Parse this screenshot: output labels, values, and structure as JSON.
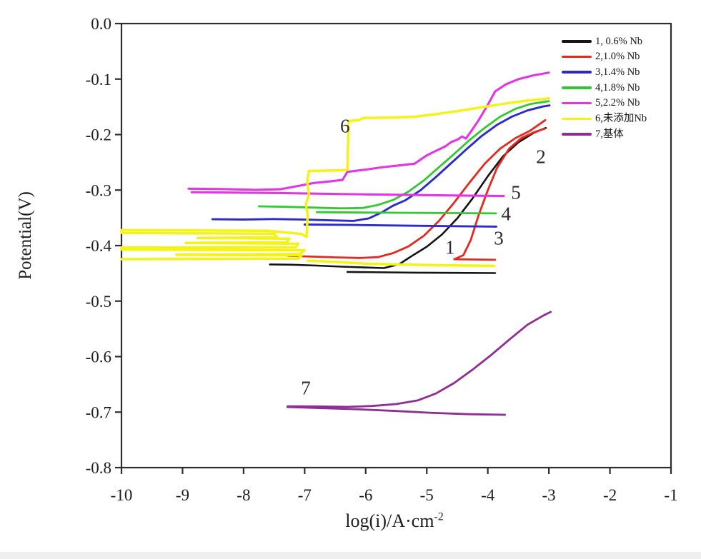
{
  "figure": {
    "background": "#ffffff",
    "axis_color": "#2e2e2e",
    "tick_label_color": "#1d1d1d"
  },
  "axes": {
    "x": {
      "title_prefix": "log(i)/A·cm",
      "title_sup": "-2",
      "ticks": [
        -10,
        -9,
        -8,
        -7,
        -6,
        -5,
        -4,
        -3,
        -2,
        -1
      ],
      "tick_labels": [
        "-10",
        "-9",
        "-8",
        "-7",
        "-6",
        "-5",
        "-4",
        "-3",
        "-2",
        "-1"
      ]
    },
    "y": {
      "title": "Potential(V)",
      "ticks": [
        0,
        -0.1,
        -0.2,
        -0.3,
        -0.4,
        -0.5,
        -0.6,
        -0.7,
        -0.8
      ],
      "tick_labels": [
        "0.0",
        "-0.1",
        "-0.2",
        "-0.3",
        "-0.4",
        "-0.5",
        "-0.6",
        "-0.7",
        "-0.8"
      ]
    }
  },
  "legend": {
    "items": [
      {
        "label": "1, 0.6% Nb",
        "color": "#141414"
      },
      {
        "label": "2,1.0% Nb",
        "color": "#e6281e"
      },
      {
        "label": "3,1.4% Nb",
        "color": "#2b2bcb"
      },
      {
        "label": "4,1.8% Nb",
        "color": "#2fca2f"
      },
      {
        "label": "5,2.2% Nb",
        "color": "#e335e3"
      },
      {
        "label": "6,未添加Nb",
        "color": "#f4f414"
      },
      {
        "label": "7,基体",
        "color": "#8e2d93"
      }
    ]
  },
  "curve_labels": [
    {
      "text": "1",
      "x": -4.62,
      "v": -0.404
    },
    {
      "text": "2",
      "x": -3.13,
      "v": -0.2405
    },
    {
      "text": "3",
      "x": -3.82,
      "v": -0.387
    },
    {
      "text": "4",
      "x": -3.7,
      "v": -0.344
    },
    {
      "text": "5",
      "x": -3.54,
      "v": -0.305
    },
    {
      "text": "6",
      "x": -6.34,
      "v": -0.185
    },
    {
      "text": "7",
      "x": -6.98,
      "v": -0.657
    }
  ],
  "chart_data": {
    "type": "line",
    "title": "",
    "xlabel": "log(i)/A·cm⁻²",
    "ylabel": "Potential(V)",
    "xlim": [
      -10,
      -1
    ],
    "ylim": [
      -0.8,
      0.0
    ],
    "grid": false,
    "legend_position": "upper right",
    "series": [
      {
        "name": "1, 0.6% Nb",
        "color": "#141414",
        "width": 2.6,
        "branches": [
          [
            [
              -7.57,
              -0.434
            ],
            [
              -7.2,
              -0.4345
            ],
            [
              -6.8,
              -0.436
            ],
            [
              -6.4,
              -0.438
            ],
            [
              -6.0,
              -0.4395
            ],
            [
              -5.7,
              -0.4405
            ],
            [
              -5.45,
              -0.4335
            ],
            [
              -5.25,
              -0.419
            ],
            [
              -5.0,
              -0.402
            ],
            [
              -4.75,
              -0.38
            ],
            [
              -4.5,
              -0.351
            ],
            [
              -4.25,
              -0.315
            ],
            [
              -4.0,
              -0.275
            ],
            [
              -3.75,
              -0.239
            ],
            [
              -3.5,
              -0.214
            ],
            [
              -3.25,
              -0.197
            ],
            [
              -3.05,
              -0.188
            ]
          ],
          [
            [
              -6.3,
              -0.4475
            ],
            [
              -5.2,
              -0.4487
            ],
            [
              -3.88,
              -0.4495
            ]
          ]
        ]
      },
      {
        "name": "2,1.0% Nb",
        "color": "#e6281e",
        "width": 2.8,
        "branches": [
          [
            [
              -7.27,
              -0.4185
            ],
            [
              -6.9,
              -0.4198
            ],
            [
              -6.5,
              -0.4212
            ],
            [
              -6.1,
              -0.4222
            ],
            [
              -5.8,
              -0.4208
            ],
            [
              -5.55,
              -0.4135
            ],
            [
              -5.3,
              -0.4015
            ],
            [
              -5.05,
              -0.3825
            ],
            [
              -4.8,
              -0.3555
            ],
            [
              -4.55,
              -0.3225
            ],
            [
              -4.3,
              -0.2865
            ],
            [
              -4.05,
              -0.2525
            ],
            [
              -3.8,
              -0.2255
            ],
            [
              -3.55,
              -0.2065
            ],
            [
              -3.3,
              -0.1925
            ],
            [
              -3.06,
              -0.174
            ]
          ],
          [
            [
              -3.07,
              -0.1895
            ],
            [
              -3.25,
              -0.1962
            ],
            [
              -3.45,
              -0.2062
            ],
            [
              -3.65,
              -0.2252
            ],
            [
              -3.85,
              -0.2602
            ],
            [
              -4.0,
              -0.3002
            ],
            [
              -4.15,
              -0.3452
            ],
            [
              -4.28,
              -0.3902
            ],
            [
              -4.4,
              -0.4172
            ],
            [
              -4.55,
              -0.4246
            ],
            [
              -3.88,
              -0.4256
            ]
          ]
        ]
      },
      {
        "name": "3,1.4% Nb",
        "color": "#2b2bcb",
        "width": 2.9,
        "branches": [
          [
            [
              -8.51,
              -0.3525
            ],
            [
              -8.0,
              -0.353
            ],
            [
              -7.5,
              -0.3522
            ],
            [
              -7.0,
              -0.3532
            ],
            [
              -6.6,
              -0.3545
            ],
            [
              -6.2,
              -0.3555
            ],
            [
              -5.95,
              -0.351
            ],
            [
              -5.75,
              -0.341
            ],
            [
              -5.55,
              -0.328
            ],
            [
              -5.35,
              -0.3185
            ],
            [
              -5.1,
              -0.3
            ],
            [
              -4.85,
              -0.2765
            ],
            [
              -4.6,
              -0.2515
            ],
            [
              -4.35,
              -0.2265
            ],
            [
              -4.1,
              -0.2025
            ],
            [
              -3.85,
              -0.1825
            ],
            [
              -3.6,
              -0.1675
            ],
            [
              -3.35,
              -0.1565
            ],
            [
              -3.1,
              -0.1495
            ],
            [
              -2.99,
              -0.1475
            ]
          ],
          [
            [
              -7.0,
              -0.362
            ],
            [
              -6.2,
              -0.3628
            ],
            [
              -5.2,
              -0.3642
            ],
            [
              -3.86,
              -0.3658
            ]
          ]
        ]
      },
      {
        "name": "4,1.8% Nb",
        "color": "#2fca2f",
        "width": 2.8,
        "branches": [
          [
            [
              -7.75,
              -0.3292
            ],
            [
              -7.3,
              -0.3302
            ],
            [
              -6.9,
              -0.3315
            ],
            [
              -6.4,
              -0.3328
            ],
            [
              -6.05,
              -0.3322
            ],
            [
              -5.8,
              -0.3268
            ],
            [
              -5.55,
              -0.3178
            ],
            [
              -5.3,
              -0.3028
            ],
            [
              -5.05,
              -0.2828
            ],
            [
              -4.8,
              -0.2588
            ],
            [
              -4.55,
              -0.2348
            ],
            [
              -4.3,
              -0.2098
            ],
            [
              -4.05,
              -0.1878
            ],
            [
              -3.8,
              -0.1678
            ],
            [
              -3.55,
              -0.1538
            ],
            [
              -3.3,
              -0.1448
            ],
            [
              -3.0,
              -0.1398
            ]
          ],
          [
            [
              -6.8,
              -0.3398
            ],
            [
              -5.5,
              -0.3408
            ],
            [
              -3.87,
              -0.342
            ]
          ]
        ]
      },
      {
        "name": "5,2.2% Nb",
        "color": "#e335e3",
        "width": 3.1,
        "branches": [
          [
            [
              -8.9,
              -0.2975
            ],
            [
              -8.3,
              -0.2982
            ],
            [
              -7.8,
              -0.2995
            ],
            [
              -7.4,
              -0.2985
            ],
            [
              -7.1,
              -0.2925
            ],
            [
              -6.85,
              -0.2872
            ],
            [
              -6.6,
              -0.2845
            ],
            [
              -6.38,
              -0.2818
            ],
            [
              -6.3,
              -0.2672
            ],
            [
              -6.0,
              -0.2632
            ],
            [
              -5.75,
              -0.2592
            ],
            [
              -5.45,
              -0.2555
            ],
            [
              -5.2,
              -0.2525
            ],
            [
              -5.0,
              -0.2375
            ],
            [
              -4.85,
              -0.2295
            ],
            [
              -4.7,
              -0.2215
            ],
            [
              -4.6,
              -0.2135
            ],
            [
              -4.5,
              -0.2092
            ],
            [
              -4.42,
              -0.2035
            ],
            [
              -4.36,
              -0.2072
            ],
            [
              -4.28,
              -0.1952
            ],
            [
              -4.15,
              -0.1742
            ],
            [
              -4.0,
              -0.1462
            ],
            [
              -3.88,
              -0.1222
            ],
            [
              -3.7,
              -0.1092
            ],
            [
              -3.5,
              -0.1002
            ],
            [
              -3.25,
              -0.0932
            ],
            [
              -3.0,
              -0.0885
            ]
          ],
          [
            [
              -8.85,
              -0.3038
            ],
            [
              -7.5,
              -0.3052
            ],
            [
              -6.0,
              -0.3078
            ],
            [
              -4.8,
              -0.3095
            ],
            [
              -3.74,
              -0.3108
            ]
          ]
        ]
      },
      {
        "name": "6,未添加Nb",
        "color": "#f4f414",
        "width": 3.5,
        "branches": [
          [
            [
              -10,
              -0.4245
            ],
            [
              -7.1,
              -0.4235
            ],
            [
              -7.05,
              -0.4175
            ],
            [
              -9.1,
              -0.4165
            ],
            [
              -7.08,
              -0.4152
            ],
            [
              -7.0,
              -0.4085
            ],
            [
              -10,
              -0.4072
            ],
            [
              -10,
              -0.4035
            ],
            [
              -7.15,
              -0.4032
            ],
            [
              -7.1,
              -0.3965
            ],
            [
              -8.95,
              -0.3952
            ],
            [
              -7.3,
              -0.3942
            ],
            [
              -7.25,
              -0.3875
            ],
            [
              -8.75,
              -0.3862
            ],
            [
              -7.45,
              -0.3852
            ],
            [
              -7.5,
              -0.3785
            ],
            [
              -10,
              -0.3772
            ],
            [
              -10,
              -0.3722
            ],
            [
              -7.6,
              -0.3732
            ],
            [
              -7.05,
              -0.3792
            ],
            [
              -6.97,
              -0.3845
            ],
            [
              -6.95,
              -0.345
            ],
            [
              -6.98,
              -0.325
            ],
            [
              -6.93,
              -0.308
            ],
            [
              -6.96,
              -0.285
            ],
            [
              -6.93,
              -0.2655
            ],
            [
              -6.4,
              -0.2645
            ],
            [
              -6.3,
              -0.2635
            ],
            [
              -6.28,
              -0.1755
            ],
            [
              -6.1,
              -0.1738
            ],
            [
              -6.05,
              -0.1702
            ],
            [
              -5.6,
              -0.1695
            ],
            [
              -5.2,
              -0.168
            ],
            [
              -4.9,
              -0.1638
            ],
            [
              -4.5,
              -0.1578
            ],
            [
              -4.1,
              -0.1508
            ],
            [
              -3.7,
              -0.1438
            ],
            [
              -3.35,
              -0.1388
            ],
            [
              -3.0,
              -0.1348
            ]
          ],
          [
            [
              -6.95,
              -0.427
            ],
            [
              -6.5,
              -0.4295
            ],
            [
              -6.0,
              -0.4325
            ],
            [
              -5.5,
              -0.434
            ],
            [
              -4.7,
              -0.4355
            ],
            [
              -3.9,
              -0.4365
            ]
          ]
        ]
      },
      {
        "name": "7,基体",
        "color": "#8e2d93",
        "width": 2.8,
        "branches": [
          [
            [
              -7.28,
              -0.6895
            ],
            [
              -6.8,
              -0.6898
            ],
            [
              -6.3,
              -0.6905
            ],
            [
              -5.9,
              -0.689
            ],
            [
              -5.5,
              -0.6855
            ],
            [
              -5.15,
              -0.679
            ],
            [
              -4.85,
              -0.6665
            ],
            [
              -4.55,
              -0.6475
            ],
            [
              -4.25,
              -0.6235
            ],
            [
              -3.95,
              -0.5975
            ],
            [
              -3.65,
              -0.5695
            ],
            [
              -3.35,
              -0.5425
            ],
            [
              -3.1,
              -0.5265
            ],
            [
              -2.97,
              -0.5195
            ]
          ],
          [
            [
              -7.28,
              -0.6908
            ],
            [
              -6.7,
              -0.6928
            ],
            [
              -6.1,
              -0.695
            ],
            [
              -5.5,
              -0.698
            ],
            [
              -4.9,
              -0.7015
            ],
            [
              -4.3,
              -0.7038
            ],
            [
              -3.72,
              -0.7048
            ]
          ]
        ]
      }
    ]
  }
}
